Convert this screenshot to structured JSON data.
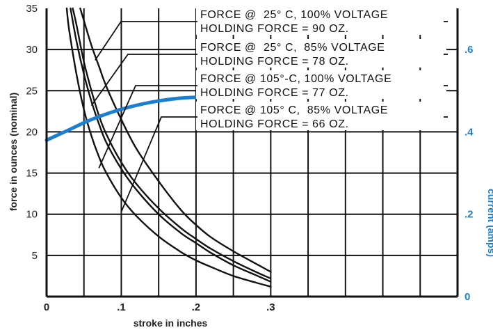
{
  "chart_data": {
    "type": "line",
    "xlabel": "stroke in inches",
    "ylabel": "force in ounces (nominal)",
    "y2label": "current (amps)",
    "xlim": [
      0,
      0.55
    ],
    "ylim": [
      0,
      35
    ],
    "y2lim": [
      0,
      0.7
    ],
    "grid": true,
    "x_ticks": [
      0,
      0.1,
      0.2,
      0.3
    ],
    "x_tick_labels": [
      "0",
      ".1",
      ".2",
      ".3"
    ],
    "y_ticks": [
      5,
      10,
      15,
      20,
      25,
      30,
      35
    ],
    "y_tick_labels": [
      "5",
      "10",
      "15",
      "20",
      "25",
      "30",
      "35"
    ],
    "y2_ticks": [
      0,
      0.2,
      0.4,
      0.6
    ],
    "y2_tick_labels": [
      "0",
      ".2",
      ".4",
      ".6"
    ],
    "series": [
      {
        "label_lines": [
          "FORCE @  25° C, 100% VOLTAGE",
          "HOLDING FORCE = 90 OZ."
        ],
        "x": [
          0.045,
          0.05,
          0.06,
          0.07,
          0.08,
          0.1,
          0.12,
          0.15,
          0.18,
          0.2,
          0.22,
          0.25,
          0.28,
          0.3
        ],
        "values": [
          35,
          33.5,
          30.5,
          28,
          25.5,
          21.5,
          18,
          14,
          10.5,
          8.7,
          7.2,
          5.5,
          4,
          3
        ]
      },
      {
        "label_lines": [
          "FORCE @  25° C,  85% VOLTAGE",
          "HOLDING FORCE = 78 OZ."
        ],
        "x": [
          0.035,
          0.04,
          0.05,
          0.06,
          0.07,
          0.08,
          0.1,
          0.12,
          0.15,
          0.18,
          0.2,
          0.22,
          0.25,
          0.28,
          0.3
        ],
        "values": [
          35,
          33,
          28.5,
          25,
          22,
          19.7,
          16.3,
          13.7,
          10.7,
          8.3,
          7,
          5.8,
          4.3,
          3,
          2.2
        ]
      },
      {
        "label_lines": [
          "FORCE @ 105°-C, 100% VOLTAGE",
          "HOLDING FORCE = 77 OZ."
        ],
        "x": [
          0.032,
          0.04,
          0.05,
          0.06,
          0.07,
          0.08,
          0.1,
          0.12,
          0.15,
          0.18,
          0.2,
          0.22,
          0.25,
          0.28,
          0.3
        ],
        "values": [
          35,
          31,
          27,
          23.7,
          21,
          18.7,
          15.5,
          13,
          10,
          7.7,
          6.5,
          5.3,
          3.8,
          2.6,
          1.8
        ]
      },
      {
        "label_lines": [
          "FORCE @ 105° C,  85% VOLTAGE",
          "HOLDING FORCE = 66 OZ."
        ],
        "x": [
          0.027,
          0.03,
          0.04,
          0.05,
          0.06,
          0.07,
          0.08,
          0.1,
          0.12,
          0.15,
          0.18,
          0.2,
          0.22,
          0.25,
          0.28,
          0.3
        ],
        "values": [
          35,
          32.5,
          27,
          22.7,
          19.5,
          17,
          15,
          12,
          9.8,
          7.3,
          5.4,
          4.4,
          3.6,
          2.5,
          1.7,
          1.2
        ]
      }
    ],
    "current_series": {
      "axis": "right",
      "color": "#1a7fd0",
      "x": [
        0,
        0.03,
        0.06,
        0.1,
        0.14,
        0.18,
        0.22,
        0.26,
        0.3
      ],
      "values": [
        0.38,
        0.405,
        0.43,
        0.455,
        0.472,
        0.482,
        0.485,
        0.486,
        0.487
      ]
    }
  }
}
